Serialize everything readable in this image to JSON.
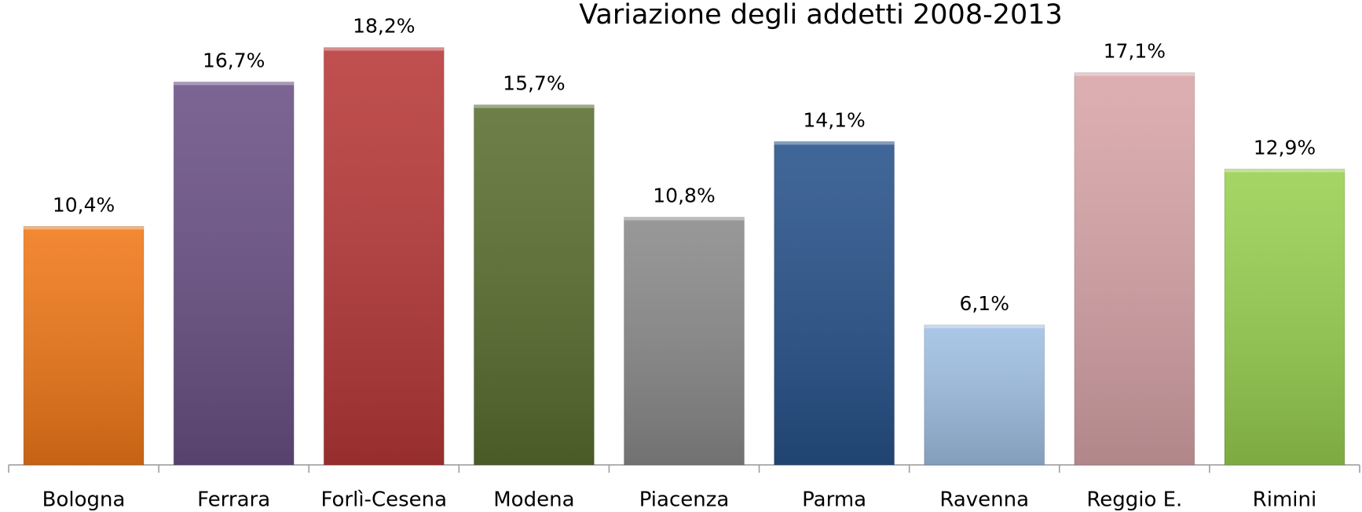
{
  "chart_data": {
    "type": "bar",
    "title": "Variazione degli addetti 2008-2013",
    "categories": [
      "Bologna",
      "Ferrara",
      "Forlì-Cesena",
      "Modena",
      "Piacenza",
      "Parma",
      "Ravenna",
      "Reggio E.",
      "Rimini"
    ],
    "values": [
      10.4,
      16.7,
      18.2,
      15.7,
      10.8,
      14.1,
      6.1,
      17.1,
      12.9
    ],
    "value_labels": [
      "10,4%",
      "16,7%",
      "18,2%",
      "15,7%",
      "10,8%",
      "14,1%",
      "6,1%",
      "17,1%",
      "12,9%"
    ],
    "colors": [
      "#f07818",
      "#6a5085",
      "#b83838",
      "#5a6e30",
      "#8a8a8a",
      "#27528a",
      "#a0c0e4",
      "#d8a4a8",
      "#98d050"
    ],
    "ylim": [
      0,
      20
    ],
    "grid": false
  }
}
